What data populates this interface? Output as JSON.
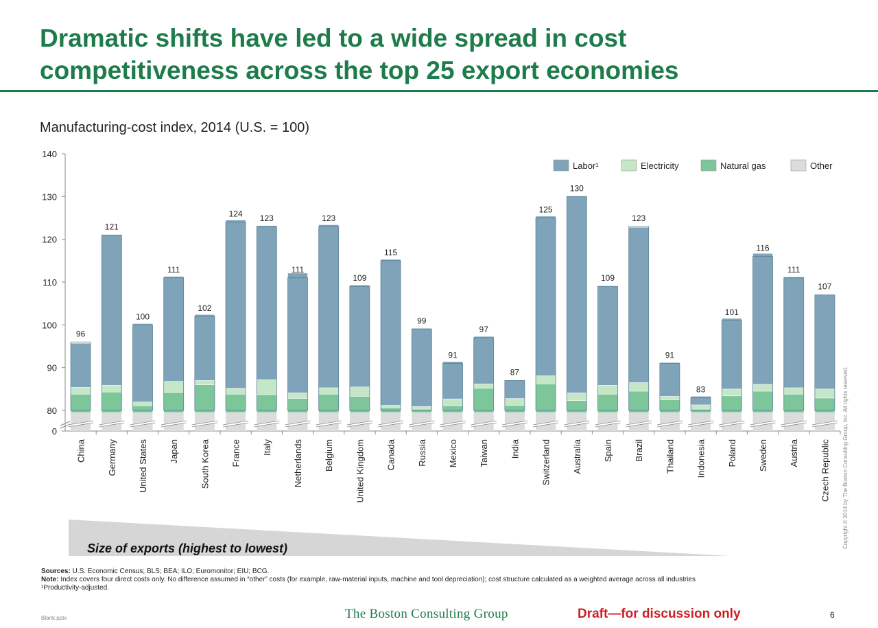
{
  "header": {
    "title_line1": "Dramatic shifts have led to a wide spread in cost",
    "title_line2": "competitiveness across the top 25 export economies"
  },
  "chart_data": {
    "type": "bar",
    "stacked": true,
    "title": "Manufacturing-cost index, 2014 (U.S. = 100)",
    "xlabel": "",
    "ylabel": "",
    "ylim": [
      0,
      140
    ],
    "axis_break": true,
    "yticks": [
      0,
      80,
      90,
      100,
      110,
      120,
      130,
      140
    ],
    "legend_position": "top-right",
    "categories": [
      "China",
      "Germany",
      "United States",
      "Japan",
      "South Korea",
      "France",
      "Italy",
      "Netherlands",
      "Belgium",
      "United Kingdom",
      "Canada",
      "Russia",
      "Mexico",
      "Taiwan",
      "India",
      "Switzerland",
      "Australia",
      "Spain",
      "Brazil",
      "Thailand",
      "Indonesia",
      "Poland",
      "Sweden",
      "Austria",
      "Czech Republic"
    ],
    "totals": [
      96,
      121,
      100,
      111,
      102,
      124,
      123,
      111,
      123,
      109,
      115,
      99,
      91,
      97,
      87,
      125,
      130,
      109,
      123,
      91,
      83,
      101,
      116,
      111,
      107
    ],
    "series": [
      {
        "name": "Other",
        "color": "#dcdcdc",
        "values": [
          79.5,
          79.5,
          79.5,
          79.5,
          79.5,
          79.5,
          79.5,
          79.5,
          79.5,
          79.5,
          79.5,
          79.5,
          79.5,
          79.5,
          79.5,
          79.5,
          79.5,
          79.5,
          79.5,
          79.5,
          79.5,
          79.5,
          79.5,
          79.5,
          79.5
        ]
      },
      {
        "name": "Natural gas",
        "color": "#7cc69a",
        "values": [
          4.3,
          4.8,
          1.6,
          4.7,
          6.5,
          4.3,
          4.2,
          3.3,
          4.3,
          3.8,
          1.1,
          0.8,
          1.6,
          5.7,
          1.7,
          6.7,
          2.8,
          4.3,
          5.0,
          3.0,
          0.8,
          3.9,
          5.0,
          4.3,
          3.4
        ]
      },
      {
        "name": "Electricity",
        "color": "#c6e6c8",
        "values": [
          1.6,
          1.6,
          0.9,
          2.6,
          1.0,
          1.4,
          3.5,
          1.3,
          1.5,
          2.2,
          0.6,
          0.6,
          1.6,
          1.0,
          1.6,
          1.9,
          1.8,
          2.1,
          2.0,
          0.8,
          1.0,
          1.6,
          1.6,
          1.5,
          2.1
        ]
      },
      {
        "name": "Labor¹",
        "color": "#7fa3b8",
        "values": [
          10.3,
          35.2,
          18.3,
          24.5,
          15.4,
          39.3,
          36.0,
          28.0,
          38.1,
          23.8,
          34.1,
          18.3,
          8.7,
          11.1,
          4.3,
          37.3,
          46.0,
          23.2,
          36.3,
          7.9,
          2.0,
          16.5,
          30.6,
          25.9,
          22.0
        ]
      }
    ]
  },
  "wedge": {
    "label": "Size of exports (highest to lowest)"
  },
  "notes": {
    "sources_label": "Sources:",
    "sources_text": "U.S. Economic Census; BLS; BEA; ILO; Euromonitor; EIU; BCG.",
    "note_label": "Note:",
    "note_text": "Index covers four direct costs only. No difference assumed in “other” costs (for example, raw-material inputs, machine and tool depreciation); cost structure calculated as a weighted average across all industries",
    "footnote": "¹Productivity-adjusted."
  },
  "footer": {
    "filename": "Blank.pptx",
    "logo": "The Boston Consulting Group",
    "draft": "Draft—for discussion only",
    "page": "6",
    "copyright": "Copyright © 2014 by The Boston Consulting Group, Inc. All rights reserved."
  }
}
